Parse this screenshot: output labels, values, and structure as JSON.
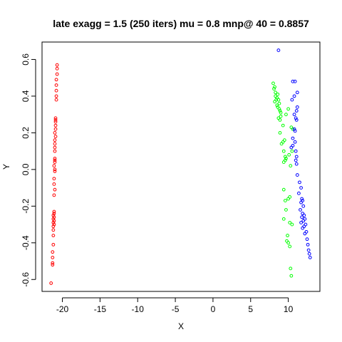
{
  "chart_data": {
    "type": "scatter",
    "title": "late exagg = 1.5 (250 iters) mu = 0.8 mnp@ 40 = 0.8857",
    "xlabel": "X",
    "ylabel": "Y",
    "xlim": [
      -22.7,
      14.2
    ],
    "ylim": [
      -0.665,
      0.695
    ],
    "x_ticks": [
      -20,
      -15,
      -10,
      -5,
      0,
      5,
      10
    ],
    "x_tick_labels": [
      "-20",
      "-15",
      "-10",
      "-5",
      "0",
      "5",
      "10"
    ],
    "y_ticks": [
      -0.6,
      -0.4,
      -0.2,
      0.0,
      0.2,
      0.4,
      0.6
    ],
    "y_tick_labels": [
      "-0.6",
      "-0.4",
      "-0.2",
      "0.0",
      "0.2",
      "0.4",
      "0.6"
    ],
    "grid": false,
    "legend": "none",
    "marker": "open-circle",
    "series": [
      {
        "color": "#ff0000",
        "points": [
          [
            -20.7,
            0.57
          ],
          [
            -20.7,
            0.55
          ],
          [
            -20.7,
            0.52
          ],
          [
            -20.8,
            0.49
          ],
          [
            -20.8,
            0.46
          ],
          [
            -20.8,
            0.43
          ],
          [
            -20.8,
            0.4
          ],
          [
            -20.8,
            0.38
          ],
          [
            -20.9,
            0.28
          ],
          [
            -20.9,
            0.27
          ],
          [
            -20.9,
            0.26
          ],
          [
            -20.9,
            0.24
          ],
          [
            -20.9,
            0.22
          ],
          [
            -21.0,
            0.2
          ],
          [
            -20.9,
            0.18
          ],
          [
            -21.0,
            0.16
          ],
          [
            -21.0,
            0.14
          ],
          [
            -21.0,
            0.12
          ],
          [
            -21.0,
            0.1
          ],
          [
            -21.0,
            0.06
          ],
          [
            -21.0,
            0.05
          ],
          [
            -21.0,
            0.04
          ],
          [
            -21.1,
            0.02
          ],
          [
            -21.0,
            0.0
          ],
          [
            -21.0,
            -0.01
          ],
          [
            -21.1,
            -0.05
          ],
          [
            -21.1,
            -0.08
          ],
          [
            -21.0,
            -0.11
          ],
          [
            -21.1,
            -0.14
          ],
          [
            -21.1,
            -0.23
          ],
          [
            -21.1,
            -0.24
          ],
          [
            -21.2,
            -0.25
          ],
          [
            -21.1,
            -0.26
          ],
          [
            -21.2,
            -0.27
          ],
          [
            -21.1,
            -0.28
          ],
          [
            -21.2,
            -0.29
          ],
          [
            -21.1,
            -0.3
          ],
          [
            -21.2,
            -0.31
          ],
          [
            -21.2,
            -0.33
          ],
          [
            -21.2,
            -0.36
          ],
          [
            -21.2,
            -0.41
          ],
          [
            -21.3,
            -0.45
          ],
          [
            -21.3,
            -0.48
          ],
          [
            -21.3,
            -0.51
          ],
          [
            -21.3,
            -0.52
          ],
          [
            -21.5,
            -0.62
          ]
        ]
      },
      {
        "color": "#00ff00",
        "points": [
          [
            8.0,
            0.47
          ],
          [
            8.2,
            0.45
          ],
          [
            8.1,
            0.44
          ],
          [
            8.3,
            0.42
          ],
          [
            8.6,
            0.41
          ],
          [
            8.3,
            0.4
          ],
          [
            8.5,
            0.39
          ],
          [
            8.4,
            0.38
          ],
          [
            8.7,
            0.38
          ],
          [
            8.2,
            0.37
          ],
          [
            8.8,
            0.36
          ],
          [
            8.5,
            0.35
          ],
          [
            8.6,
            0.34
          ],
          [
            8.8,
            0.33
          ],
          [
            8.9,
            0.32
          ],
          [
            9.0,
            0.31
          ],
          [
            10.0,
            0.33
          ],
          [
            9.7,
            0.3
          ],
          [
            9.0,
            0.29
          ],
          [
            8.7,
            0.28
          ],
          [
            8.9,
            0.27
          ],
          [
            9.3,
            0.24
          ],
          [
            10.4,
            0.23
          ],
          [
            10.6,
            0.22
          ],
          [
            8.9,
            0.2
          ],
          [
            9.5,
            0.16
          ],
          [
            9.3,
            0.15
          ],
          [
            9.1,
            0.14
          ],
          [
            9.4,
            0.1
          ],
          [
            10.5,
            0.1
          ],
          [
            10.1,
            0.08
          ],
          [
            9.6,
            0.07
          ],
          [
            9.7,
            0.06
          ],
          [
            9.6,
            0.05
          ],
          [
            9.4,
            0.04
          ],
          [
            10.3,
            0.02
          ],
          [
            9.4,
            -0.11
          ],
          [
            10.2,
            -0.15
          ],
          [
            10.0,
            -0.16
          ],
          [
            9.6,
            -0.17
          ],
          [
            9.7,
            -0.22
          ],
          [
            9.4,
            -0.27
          ],
          [
            10.2,
            -0.29
          ],
          [
            10.5,
            -0.3
          ],
          [
            9.9,
            -0.36
          ],
          [
            9.8,
            -0.39
          ],
          [
            10.0,
            -0.4
          ],
          [
            10.2,
            -0.42
          ],
          [
            10.3,
            -0.54
          ],
          [
            10.4,
            -0.58
          ]
        ]
      },
      {
        "color": "#0000ff",
        "points": [
          [
            8.7,
            0.65
          ],
          [
            10.6,
            0.48
          ],
          [
            10.9,
            0.48
          ],
          [
            11.2,
            0.42
          ],
          [
            10.8,
            0.4
          ],
          [
            10.5,
            0.38
          ],
          [
            11.2,
            0.34
          ],
          [
            11.1,
            0.32
          ],
          [
            10.8,
            0.3
          ],
          [
            11.0,
            0.28
          ],
          [
            11.1,
            0.27
          ],
          [
            10.8,
            0.22
          ],
          [
            10.9,
            0.21
          ],
          [
            10.6,
            0.17
          ],
          [
            10.9,
            0.15
          ],
          [
            10.6,
            0.13
          ],
          [
            10.4,
            0.12
          ],
          [
            11.0,
            0.1
          ],
          [
            11.1,
            0.07
          ],
          [
            11.0,
            0.05
          ],
          [
            11.1,
            0.03
          ],
          [
            11.2,
            -0.03
          ],
          [
            11.5,
            -0.07
          ],
          [
            11.7,
            -0.1
          ],
          [
            11.4,
            -0.13
          ],
          [
            11.8,
            -0.16
          ],
          [
            11.9,
            -0.17
          ],
          [
            11.7,
            -0.18
          ],
          [
            12.0,
            -0.2
          ],
          [
            11.6,
            -0.22
          ],
          [
            11.9,
            -0.24
          ],
          [
            12.1,
            -0.25
          ],
          [
            11.8,
            -0.26
          ],
          [
            12.2,
            -0.27
          ],
          [
            12.0,
            -0.28
          ],
          [
            11.7,
            -0.29
          ],
          [
            12.3,
            -0.3
          ],
          [
            12.1,
            -0.31
          ],
          [
            11.9,
            -0.32
          ],
          [
            12.4,
            -0.34
          ],
          [
            12.2,
            -0.35
          ],
          [
            12.5,
            -0.38
          ],
          [
            12.6,
            -0.41
          ],
          [
            12.7,
            -0.44
          ],
          [
            12.8,
            -0.46
          ],
          [
            12.9,
            -0.48
          ]
        ]
      }
    ]
  }
}
